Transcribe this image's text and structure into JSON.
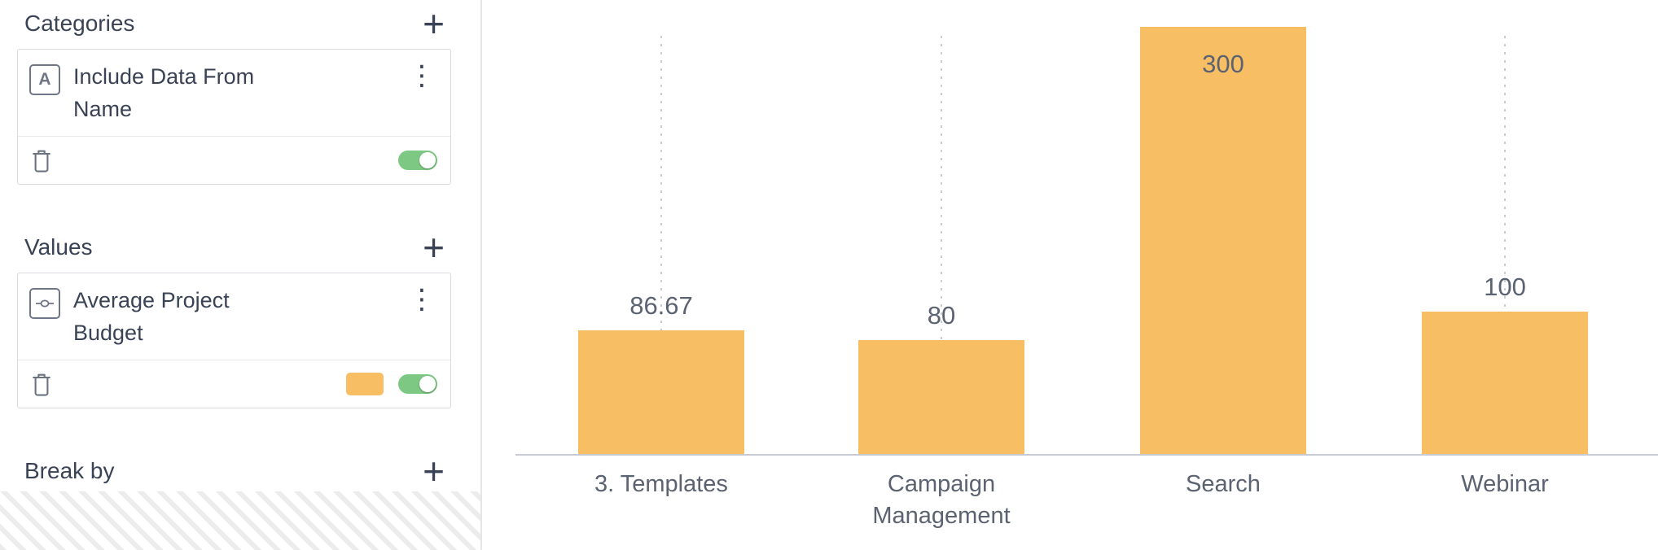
{
  "sidebar": {
    "sections": [
      {
        "title": "Categories",
        "card": {
          "icon": "text-field-icon",
          "icon_glyph": "A",
          "title": "Include Data From Name",
          "toggle_on": true
        }
      },
      {
        "title": "Values",
        "card": {
          "icon": "measure-icon",
          "title": "Average Project Budget",
          "toggle_on": true,
          "swatch_color": "#F8BE63"
        }
      },
      {
        "title": "Break by"
      }
    ]
  },
  "icons": {
    "add": "+",
    "kebab": "⋮"
  },
  "colors": {
    "bar": "#F8BE63",
    "toggle_on": "#7DC983",
    "sidebar_text": "#3A4356",
    "chart_text": "#5B6372",
    "card_border": "#D8DBDF",
    "grid_line": "#C9CED4",
    "axis_line": "#C8CCD2"
  },
  "chart_data": {
    "type": "bar",
    "categories": [
      "3. Templates",
      "Campaign Management",
      "Search",
      "Webinar"
    ],
    "values": [
      86.67,
      80,
      300,
      100
    ],
    "value_labels": [
      "86.67",
      "80",
      "300",
      "100"
    ],
    "series": [
      {
        "name": "Average Project Budget",
        "color": "#F8BE63"
      }
    ],
    "title": "",
    "xlabel": "",
    "ylabel": "",
    "ylim": [
      0,
      300
    ],
    "grid": "vertical-dotted",
    "legend": "none",
    "value_labels_shown": true
  }
}
